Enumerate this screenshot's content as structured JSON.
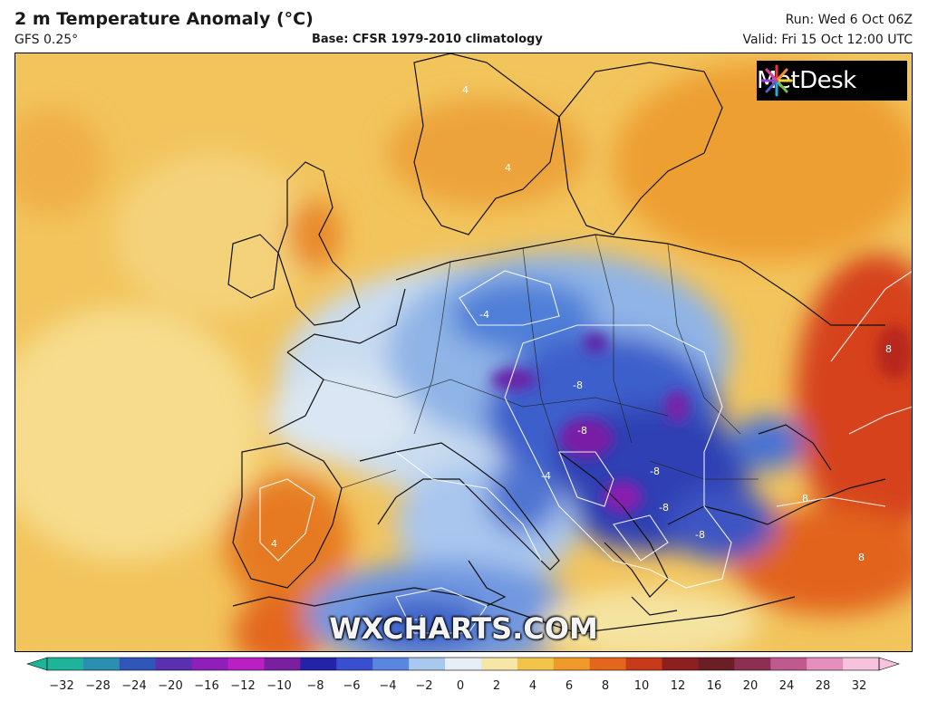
{
  "header": {
    "title": "2 m Temperature Anomaly (°C)",
    "model": "GFS 0.25°",
    "base": "Base: CFSR 1979-2010 climatology",
    "run": "Run: Wed 6 Oct 06Z",
    "valid": "Valid: Fri 15 Oct 12:00 UTC"
  },
  "logo": {
    "text": "MetDesk"
  },
  "watermark": "WXCHARTS.COM",
  "map": {
    "contour_labels": [
      "4",
      "4",
      "-4",
      "-4",
      "-8",
      "-8",
      "-8",
      "-8",
      "-8",
      "8",
      "8",
      "8",
      "-4",
      "4"
    ]
  },
  "colorbar": {
    "min": -32,
    "max": 32,
    "ticks": [
      "−32",
      "−28",
      "−24",
      "−20",
      "−16",
      "−12",
      "−10",
      "−8",
      "−6",
      "−4",
      "−2",
      "0",
      "2",
      "4",
      "6",
      "8",
      "10",
      "12",
      "16",
      "20",
      "24",
      "28",
      "32"
    ],
    "colors": [
      "#1fb39a",
      "#2a8fb0",
      "#2f56b8",
      "#5a2fb0",
      "#8f1fb8",
      "#b91fc2",
      "#7a1f9f",
      "#2323a8",
      "#3a4fcf",
      "#5b86e0",
      "#a9c8ee",
      "#e8eef6",
      "#f6e7a8",
      "#f2c54a",
      "#ef9a2a",
      "#e4651c",
      "#c73a1a",
      "#8d1f20",
      "#6b1f25",
      "#8c2f52",
      "#c05a8e",
      "#e58fbf",
      "#f6c2dc"
    ]
  }
}
